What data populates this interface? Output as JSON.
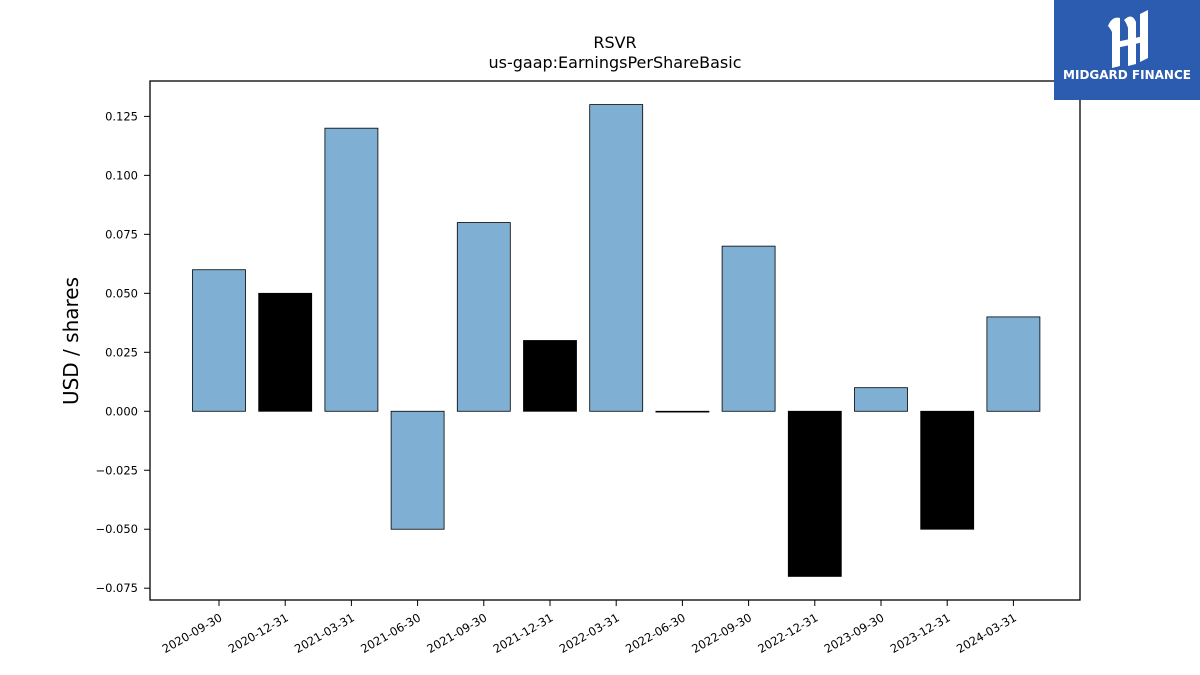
{
  "chart_data": {
    "type": "bar",
    "title": "RSVR",
    "subtitle": "us-gaap:EarningsPerShareBasic",
    "ylabel": "USD / shares",
    "xlabel": "",
    "ylim": [
      -0.08,
      0.14
    ],
    "yticks": [
      "0.125",
      "0.100",
      "0.075",
      "0.050",
      "0.025",
      "0.000",
      "−0.025",
      "−0.050",
      "−0.075"
    ],
    "ytick_values": [
      0.125,
      0.1,
      0.075,
      0.05,
      0.025,
      0.0,
      -0.025,
      -0.05,
      -0.075
    ],
    "categories": [
      "2020-09-30",
      "2020-12-31",
      "2021-03-31",
      "2021-06-30",
      "2021-09-30",
      "2021-12-31",
      "2022-03-31",
      "2022-06-30",
      "2022-09-30",
      "2022-12-31",
      "2023-09-30",
      "2023-12-31",
      "2024-03-31"
    ],
    "values": [
      0.06,
      0.05,
      0.12,
      -0.05,
      0.08,
      0.03,
      0.13,
      0.0,
      0.07,
      -0.07,
      0.01,
      -0.05,
      0.04
    ],
    "bar_colors": [
      "#7fb0d4",
      "#000000",
      "#7fb0d4",
      "#7fb0d4",
      "#7fb0d4",
      "#000000",
      "#7fb0d4",
      "#7fb0d4",
      "#7fb0d4",
      "#000000",
      "#7fb0d4",
      "#000000",
      "#7fb0d4"
    ],
    "grid": false,
    "legend": "none"
  },
  "logo": {
    "text": "MIDGARD FINANCE",
    "icon": "midgard-logo-icon",
    "background": "#2b5cb0"
  }
}
